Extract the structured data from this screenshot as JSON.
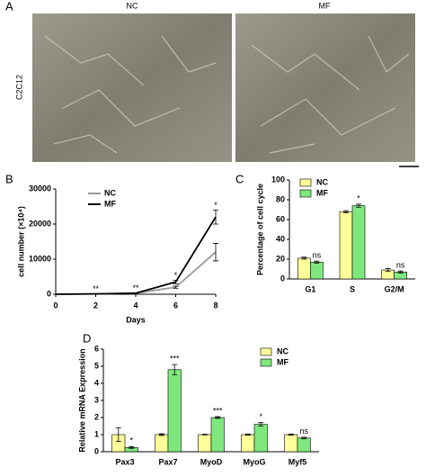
{
  "panel_a": {
    "label": "A",
    "row_label": "C2C12",
    "images": [
      {
        "title": "NC"
      },
      {
        "title": "MF"
      }
    ]
  },
  "chart_data": [
    {
      "type": "line",
      "panel": "B",
      "x_label": "Days",
      "y_label": "cell number (×10⁴)",
      "x": [
        0,
        2,
        4,
        6,
        8
      ],
      "xlim": [
        0,
        8
      ],
      "xticks": [
        0,
        2,
        4,
        6,
        8
      ],
      "ylim": [
        0,
        30000
      ],
      "yticks": [
        0,
        10000,
        20000,
        30000
      ],
      "legend": "upper left",
      "series": [
        {
          "name": "NC",
          "color": "#999999",
          "values": [
            0,
            100,
            300,
            2000,
            12000
          ],
          "errors": [
            null,
            null,
            null,
            300,
            2500
          ]
        },
        {
          "name": "MF",
          "color": "#000000",
          "values": [
            0,
            100,
            300,
            3500,
            22000
          ],
          "errors": [
            null,
            null,
            null,
            500,
            2000
          ]
        }
      ],
      "annotations": [
        {
          "x": 2,
          "text": "**"
        },
        {
          "x": 4,
          "text": "**"
        },
        {
          "x": 6,
          "text": "*"
        },
        {
          "x": 8,
          "text": "*"
        }
      ]
    },
    {
      "type": "bar",
      "panel": "C",
      "y_label": "Percentage of cell cycle",
      "categories": [
        "G1",
        "S",
        "G2/M"
      ],
      "ylim": [
        0,
        100
      ],
      "yticks": [
        0,
        20,
        40,
        60,
        80,
        100
      ],
      "legend": "upper left",
      "series": [
        {
          "name": "NC",
          "color": "#ffff99",
          "values": [
            21,
            68,
            9
          ],
          "errors": [
            1,
            1,
            1.5
          ]
        },
        {
          "name": "MF",
          "color": "#7ee87e",
          "values": [
            17,
            74,
            7
          ],
          "errors": [
            1,
            1.5,
            1
          ],
          "significance": [
            "ns",
            "*",
            "ns"
          ]
        }
      ]
    },
    {
      "type": "bar",
      "panel": "D",
      "y_label": "Relative mRNA Expression",
      "categories": [
        "Pax3",
        "Pax7",
        "MyoD",
        "MyoG",
        "Myf5"
      ],
      "ylim": [
        0,
        6
      ],
      "yticks": [
        0,
        1,
        2,
        3,
        4,
        5,
        6
      ],
      "legend": "upper right",
      "series": [
        {
          "name": "NC",
          "color": "#ffff99",
          "values": [
            1,
            1,
            1,
            1,
            1
          ],
          "errors": [
            0.4,
            0.05,
            0.02,
            0.03,
            0.03
          ]
        },
        {
          "name": "MF",
          "color": "#7ee87e",
          "values": [
            0.25,
            4.8,
            2.0,
            1.6,
            0.8
          ],
          "errors": [
            0.05,
            0.3,
            0.05,
            0.1,
            0.05
          ],
          "significance": [
            "*",
            "***",
            "***",
            "*",
            "ns"
          ]
        }
      ]
    }
  ]
}
